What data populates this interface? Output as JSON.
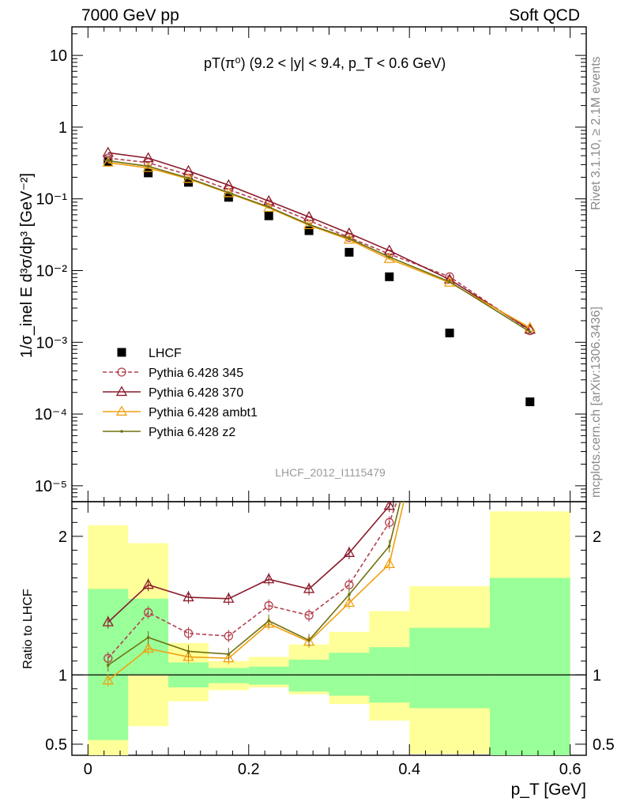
{
  "header": {
    "left": "7000 GeV pp",
    "right": "Soft QCD"
  },
  "side_labels": {
    "top": "Rivet 3.1.10, ≥ 2.1M events",
    "bottom": "mcplots.cern.ch [arXiv:1306.3436]"
  },
  "watermark": "LHCF_2012_I1115479",
  "chart_data": [
    {
      "type": "scatter",
      "panel": "main",
      "title": "pT(π⁰) (9.2 < |y| < 9.4, p_T < 0.6 GeV)",
      "ylabel": "1/σ_inel E d³σ/dp³ [GeV⁻²]",
      "xlim": [
        -0.02,
        0.62
      ],
      "ylim": [
        6e-06,
        25
      ],
      "yscale": "log",
      "yticks": [
        {
          "v": 1e-05,
          "label": "10⁻⁵"
        },
        {
          "v": 0.0001,
          "label": "10⁻⁴"
        },
        {
          "v": 0.001,
          "label": "10⁻³"
        },
        {
          "v": 0.01,
          "label": "10⁻²"
        },
        {
          "v": 0.1,
          "label": "10⁻¹"
        },
        {
          "v": 1,
          "label": "1"
        },
        {
          "v": 10,
          "label": "10"
        }
      ],
      "legend_position": "lower-left",
      "series": [
        {
          "name": "LHCF",
          "color": "#000000",
          "marker": "square",
          "style": "points",
          "x": [
            0.025,
            0.075,
            0.125,
            0.175,
            0.225,
            0.275,
            0.325,
            0.375,
            0.45,
            0.55
          ],
          "y": [
            0.33,
            0.23,
            0.17,
            0.105,
            0.058,
            0.036,
            0.018,
            0.0082,
            0.00135,
            0.000148
          ]
        },
        {
          "name": "Pythia 6.428 345",
          "color": "#b4404e",
          "marker": "circle",
          "style": "dashed",
          "x": [
            0.025,
            0.075,
            0.125,
            0.175,
            0.225,
            0.275,
            0.325,
            0.375,
            0.45,
            0.55
          ],
          "y": [
            0.37,
            0.32,
            0.215,
            0.135,
            0.085,
            0.05,
            0.029,
            0.017,
            0.0082,
            0.00145
          ]
        },
        {
          "name": "Pythia 6.428 370",
          "color": "#8a1a2a",
          "marker": "triangle",
          "style": "solid",
          "x": [
            0.025,
            0.075,
            0.125,
            0.175,
            0.225,
            0.275,
            0.325,
            0.375,
            0.45,
            0.55
          ],
          "y": [
            0.44,
            0.37,
            0.245,
            0.155,
            0.093,
            0.056,
            0.033,
            0.019,
            0.0075,
            0.0015
          ]
        },
        {
          "name": "Pythia 6.428 ambt1",
          "color": "#f0a010",
          "marker": "triangle",
          "style": "solid",
          "x": [
            0.025,
            0.075,
            0.125,
            0.175,
            0.225,
            0.275,
            0.325,
            0.375,
            0.45,
            0.55
          ],
          "y": [
            0.32,
            0.27,
            0.19,
            0.12,
            0.075,
            0.043,
            0.027,
            0.0145,
            0.0068,
            0.0016
          ]
        },
        {
          "name": "Pythia 6.428 z2",
          "color": "#707010",
          "marker": "dot",
          "style": "solid",
          "x": [
            0.025,
            0.075,
            0.125,
            0.175,
            0.225,
            0.275,
            0.325,
            0.375,
            0.45,
            0.55
          ],
          "y": [
            0.34,
            0.285,
            0.195,
            0.122,
            0.077,
            0.044,
            0.028,
            0.0155,
            0.007,
            0.0014
          ]
        }
      ]
    },
    {
      "type": "line",
      "panel": "ratio",
      "xlabel": "p_T [GeV]",
      "ylabel": "Ratio to LHCF",
      "xlim": [
        -0.02,
        0.62
      ],
      "ylim": [
        0.42,
        2.25
      ],
      "xticks": [
        0,
        0.2,
        0.4,
        0.6
      ],
      "yticks": [
        0.5,
        1,
        2
      ],
      "reference_line": 1,
      "bands": {
        "inner": {
          "color": "#99ff99",
          "bins": [
            [
              0.0,
              0.05,
              0.53,
              1.62
            ],
            [
              0.05,
              0.1,
              1.0,
              1.55
            ],
            [
              0.1,
              0.15,
              0.91,
              1.09
            ],
            [
              0.15,
              0.2,
              0.94,
              1.05
            ],
            [
              0.2,
              0.25,
              0.93,
              1.06
            ],
            [
              0.25,
              0.3,
              0.88,
              1.11
            ],
            [
              0.3,
              0.35,
              0.85,
              1.16
            ],
            [
              0.35,
              0.4,
              0.8,
              1.2
            ],
            [
              0.4,
              0.5,
              0.76,
              1.34
            ],
            [
              0.5,
              0.6,
              0.38,
              1.7
            ]
          ]
        },
        "outer": {
          "color": "#ffff99",
          "bins": [
            [
              0.0,
              0.05,
              0.38,
              2.08
            ],
            [
              0.05,
              0.1,
              0.63,
              1.95
            ],
            [
              0.1,
              0.15,
              0.81,
              1.23
            ],
            [
              0.15,
              0.2,
              0.89,
              1.1
            ],
            [
              0.2,
              0.25,
              0.91,
              1.13
            ],
            [
              0.25,
              0.3,
              0.86,
              1.22
            ],
            [
              0.3,
              0.35,
              0.79,
              1.31
            ],
            [
              0.35,
              0.4,
              0.67,
              1.46
            ],
            [
              0.4,
              0.5,
              0.43,
              1.64
            ],
            [
              0.5,
              0.6,
              0.38,
              2.18
            ]
          ]
        }
      },
      "series": [
        {
          "name": "Pythia 6.428 345",
          "color": "#b4404e",
          "marker": "circle",
          "style": "dashed",
          "x": [
            0.025,
            0.075,
            0.125,
            0.175,
            0.225,
            0.275,
            0.325,
            0.375,
            0.4
          ],
          "y": [
            1.12,
            1.45,
            1.3,
            1.28,
            1.5,
            1.43,
            1.65,
            2.1,
            2.5
          ]
        },
        {
          "name": "Pythia 6.428 370",
          "color": "#8a1a2a",
          "marker": "triangle",
          "style": "solid",
          "x": [
            0.025,
            0.075,
            0.125,
            0.175,
            0.225,
            0.275,
            0.325,
            0.375,
            0.4
          ],
          "y": [
            1.38,
            1.65,
            1.56,
            1.55,
            1.69,
            1.62,
            1.88,
            2.22,
            2.6
          ]
        },
        {
          "name": "Pythia 6.428 ambt1",
          "color": "#f0a010",
          "marker": "triangle",
          "style": "solid",
          "x": [
            0.025,
            0.075,
            0.125,
            0.175,
            0.225,
            0.275,
            0.325,
            0.375,
            0.395
          ],
          "y": [
            0.96,
            1.19,
            1.13,
            1.12,
            1.37,
            1.24,
            1.52,
            1.8,
            2.3
          ]
        },
        {
          "name": "Pythia 6.428 z2",
          "color": "#707010",
          "marker": "dot",
          "style": "solid",
          "x": [
            0.025,
            0.075,
            0.125,
            0.175,
            0.225,
            0.275,
            0.325,
            0.375,
            0.395
          ],
          "y": [
            1.07,
            1.27,
            1.17,
            1.15,
            1.39,
            1.25,
            1.58,
            1.93,
            2.4
          ]
        }
      ]
    }
  ]
}
